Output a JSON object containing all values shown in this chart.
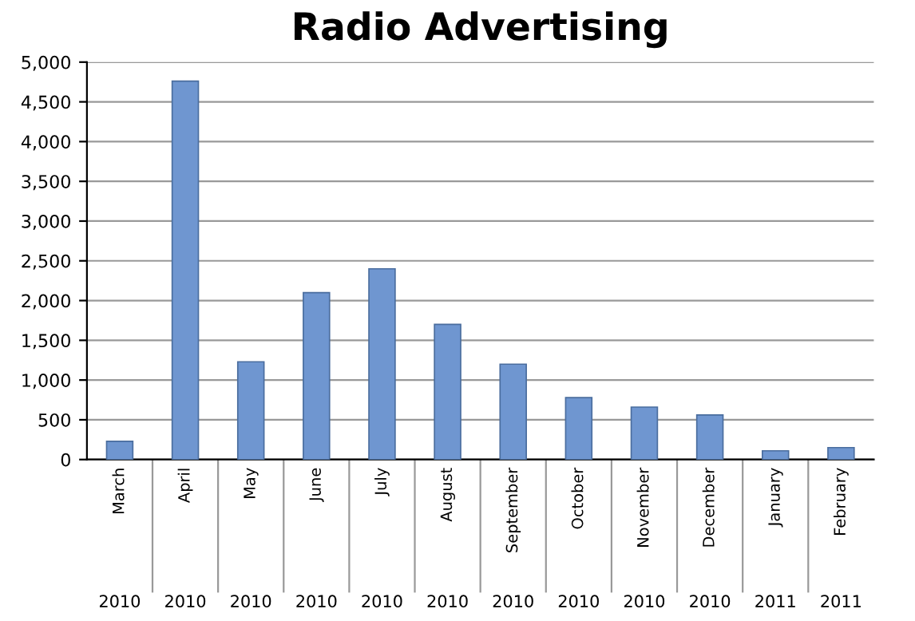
{
  "chart_data": {
    "type": "bar",
    "title": "Radio Advertising",
    "categories": [
      "March 2010",
      "April 2010",
      "May 2010",
      "June 2010",
      "July 2010",
      "August 2010",
      "September 2010",
      "October 2010",
      "November 2010",
      "December 2010",
      "January 2011",
      "February 2011"
    ],
    "values": [
      230,
      4760,
      1230,
      2100,
      2400,
      1700,
      1200,
      780,
      660,
      560,
      110,
      150
    ],
    "color": "#6f96d0",
    "ylim": [
      0,
      5000
    ],
    "yticks": [
      {
        "value": 0,
        "label": "0"
      },
      {
        "value": 500,
        "label": "500"
      },
      {
        "value": 1000,
        "label": "1,000"
      },
      {
        "value": 1500,
        "label": "1,500"
      },
      {
        "value": 2000,
        "label": "2,000"
      },
      {
        "value": 2500,
        "label": "2,500"
      },
      {
        "value": 3000,
        "label": "3,000"
      },
      {
        "value": 3500,
        "label": "3,500"
      },
      {
        "value": 4000,
        "label": "4,000"
      },
      {
        "value": 4500,
        "label": "4,500"
      },
      {
        "value": 5000,
        "label": "5,000"
      }
    ],
    "grid": "y"
  }
}
